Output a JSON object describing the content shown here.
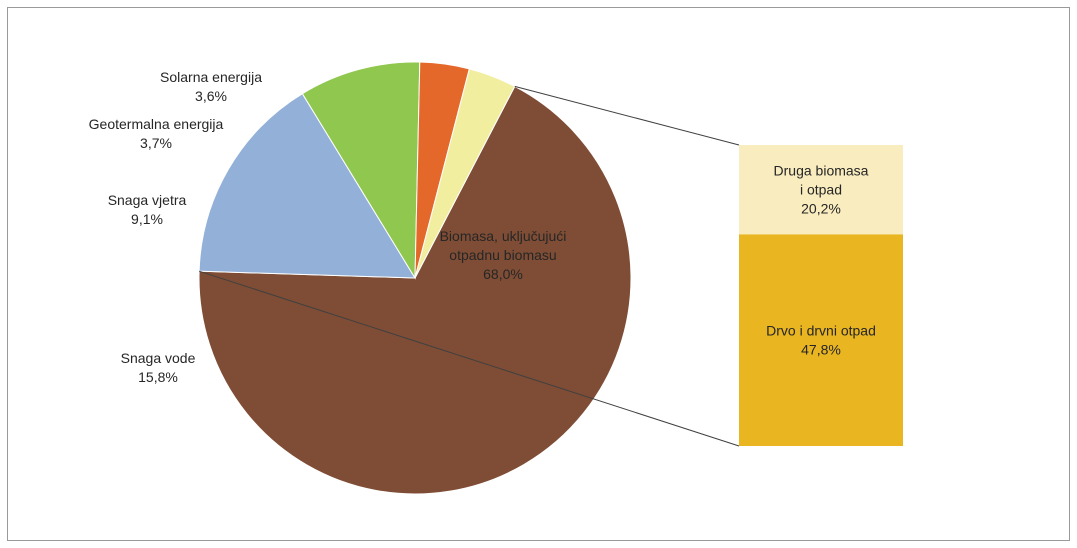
{
  "chart_data": {
    "type": "pie",
    "title": "",
    "slices": [
      {
        "name": "Biomasa, uključujući otpadnu biomasu",
        "label_lines": [
          "Biomasa, uključujući",
          "otpadnu biomasu"
        ],
        "value_label": "68,0%",
        "value": 68.0,
        "color": "#7f4d35"
      },
      {
        "name": "Snaga vode",
        "label_lines": [
          "Snaga vode"
        ],
        "value_label": "15,8%",
        "value": 15.8,
        "color": "#92b0d8"
      },
      {
        "name": "Snaga vjetra",
        "label_lines": [
          "Snaga vjetra"
        ],
        "value_label": "9,1%",
        "value": 9.1,
        "color": "#8fc74f"
      },
      {
        "name": "Geotermalna energija",
        "label_lines": [
          "Geotermalna energija"
        ],
        "value_label": "3,7%",
        "value": 3.7,
        "color": "#e4682a"
      },
      {
        "name": "Solarna energija",
        "label_lines": [
          "Solarna energija"
        ],
        "value_label": "3,6%",
        "value": 3.6,
        "color": "#f1eea0"
      }
    ],
    "breakdown": {
      "of": "Biomasa, uključujući otpadnu biomasu",
      "segments": [
        {
          "name": "Druga biomasa i otpad",
          "label_lines": [
            "Druga biomasa",
            "i otpad"
          ],
          "value_label": "20,2%",
          "value": 20.2,
          "color": "#f9ecbf"
        },
        {
          "name": "Drvo i drvni otpad",
          "label_lines": [
            "Drvo i drvni otpad"
          ],
          "value_label": "47,8%",
          "value": 47.8,
          "color": "#e9b521"
        }
      ]
    }
  }
}
